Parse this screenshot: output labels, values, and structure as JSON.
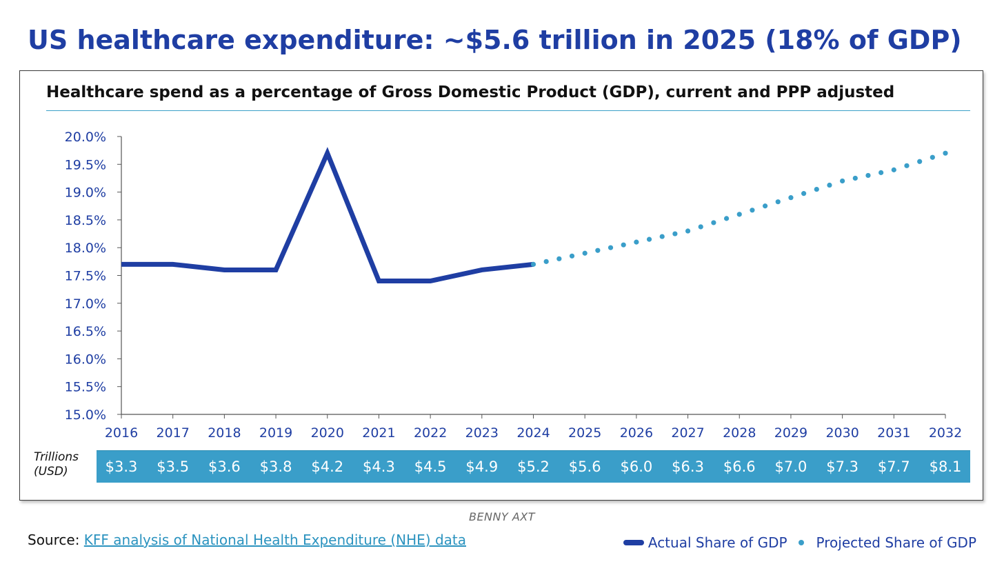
{
  "header": {
    "title": "US healthcare expenditure: ~$5.6 trillion in 2025 (18% of GDP)"
  },
  "chart_data": {
    "type": "line",
    "title": "Healthcare spend as a percentage of Gross Domestic Product (GDP), current and PPP adjusted",
    "xlabel": "",
    "ylabel": "",
    "ylim": [
      15.0,
      20.0
    ],
    "y_ticks": [
      "20.0%",
      "19.5%",
      "19.0%",
      "18.5%",
      "18.0%",
      "17.5%",
      "17.0%",
      "16.5%",
      "16.0%",
      "15.5%",
      "15.0%"
    ],
    "x": [
      "2016",
      "2017",
      "2018",
      "2019",
      "2020",
      "2021",
      "2022",
      "2023",
      "2024",
      "2025",
      "2026",
      "2027",
      "2028",
      "2029",
      "2030",
      "2031",
      "2032"
    ],
    "series": [
      {
        "name": "Actual Share of GDP",
        "style": "solid",
        "color": "#1f3ea3",
        "x": [
          "2016",
          "2017",
          "2018",
          "2019",
          "2020",
          "2021",
          "2022",
          "2023",
          "2024"
        ],
        "values": [
          17.7,
          17.7,
          17.6,
          17.6,
          19.7,
          17.4,
          17.4,
          17.6,
          17.7
        ]
      },
      {
        "name": "Projected Share of GDP",
        "style": "dotted",
        "color": "#3a9ec9",
        "x": [
          "2024",
          "2025",
          "2026",
          "2027",
          "2028",
          "2029",
          "2030",
          "2031",
          "2032"
        ],
        "values": [
          17.7,
          17.9,
          18.1,
          18.3,
          18.6,
          18.9,
          19.2,
          19.4,
          19.7
        ]
      }
    ],
    "grid": false,
    "legend_position": "bottom-right",
    "trillions_row": {
      "label": "Trillions\n(USD)",
      "values": [
        "$3.3",
        "$3.5",
        "$3.6",
        "$3.8",
        "$4.2",
        "$4.3",
        "$4.5",
        "$4.9",
        "$5.2",
        "$5.6",
        "$6.0",
        "$6.3",
        "$6.6",
        "$7.0",
        "$7.3",
        "$7.7",
        "$8.1"
      ]
    }
  },
  "footer": {
    "watermark": "BENNY AXT",
    "source_prefix": "Source: ",
    "source_link": "KFF analysis of National Health Expenditure (NHE) data"
  },
  "colors": {
    "title": "#1f3ea3",
    "axis_text": "#1f3ea3",
    "actual_line": "#1f3ea3",
    "projected_dots": "#3a9ec9",
    "trillions_bar": "#3a9ec9",
    "rule": "#3aa0c8",
    "link": "#2b93bf",
    "watermark": "#666666"
  }
}
